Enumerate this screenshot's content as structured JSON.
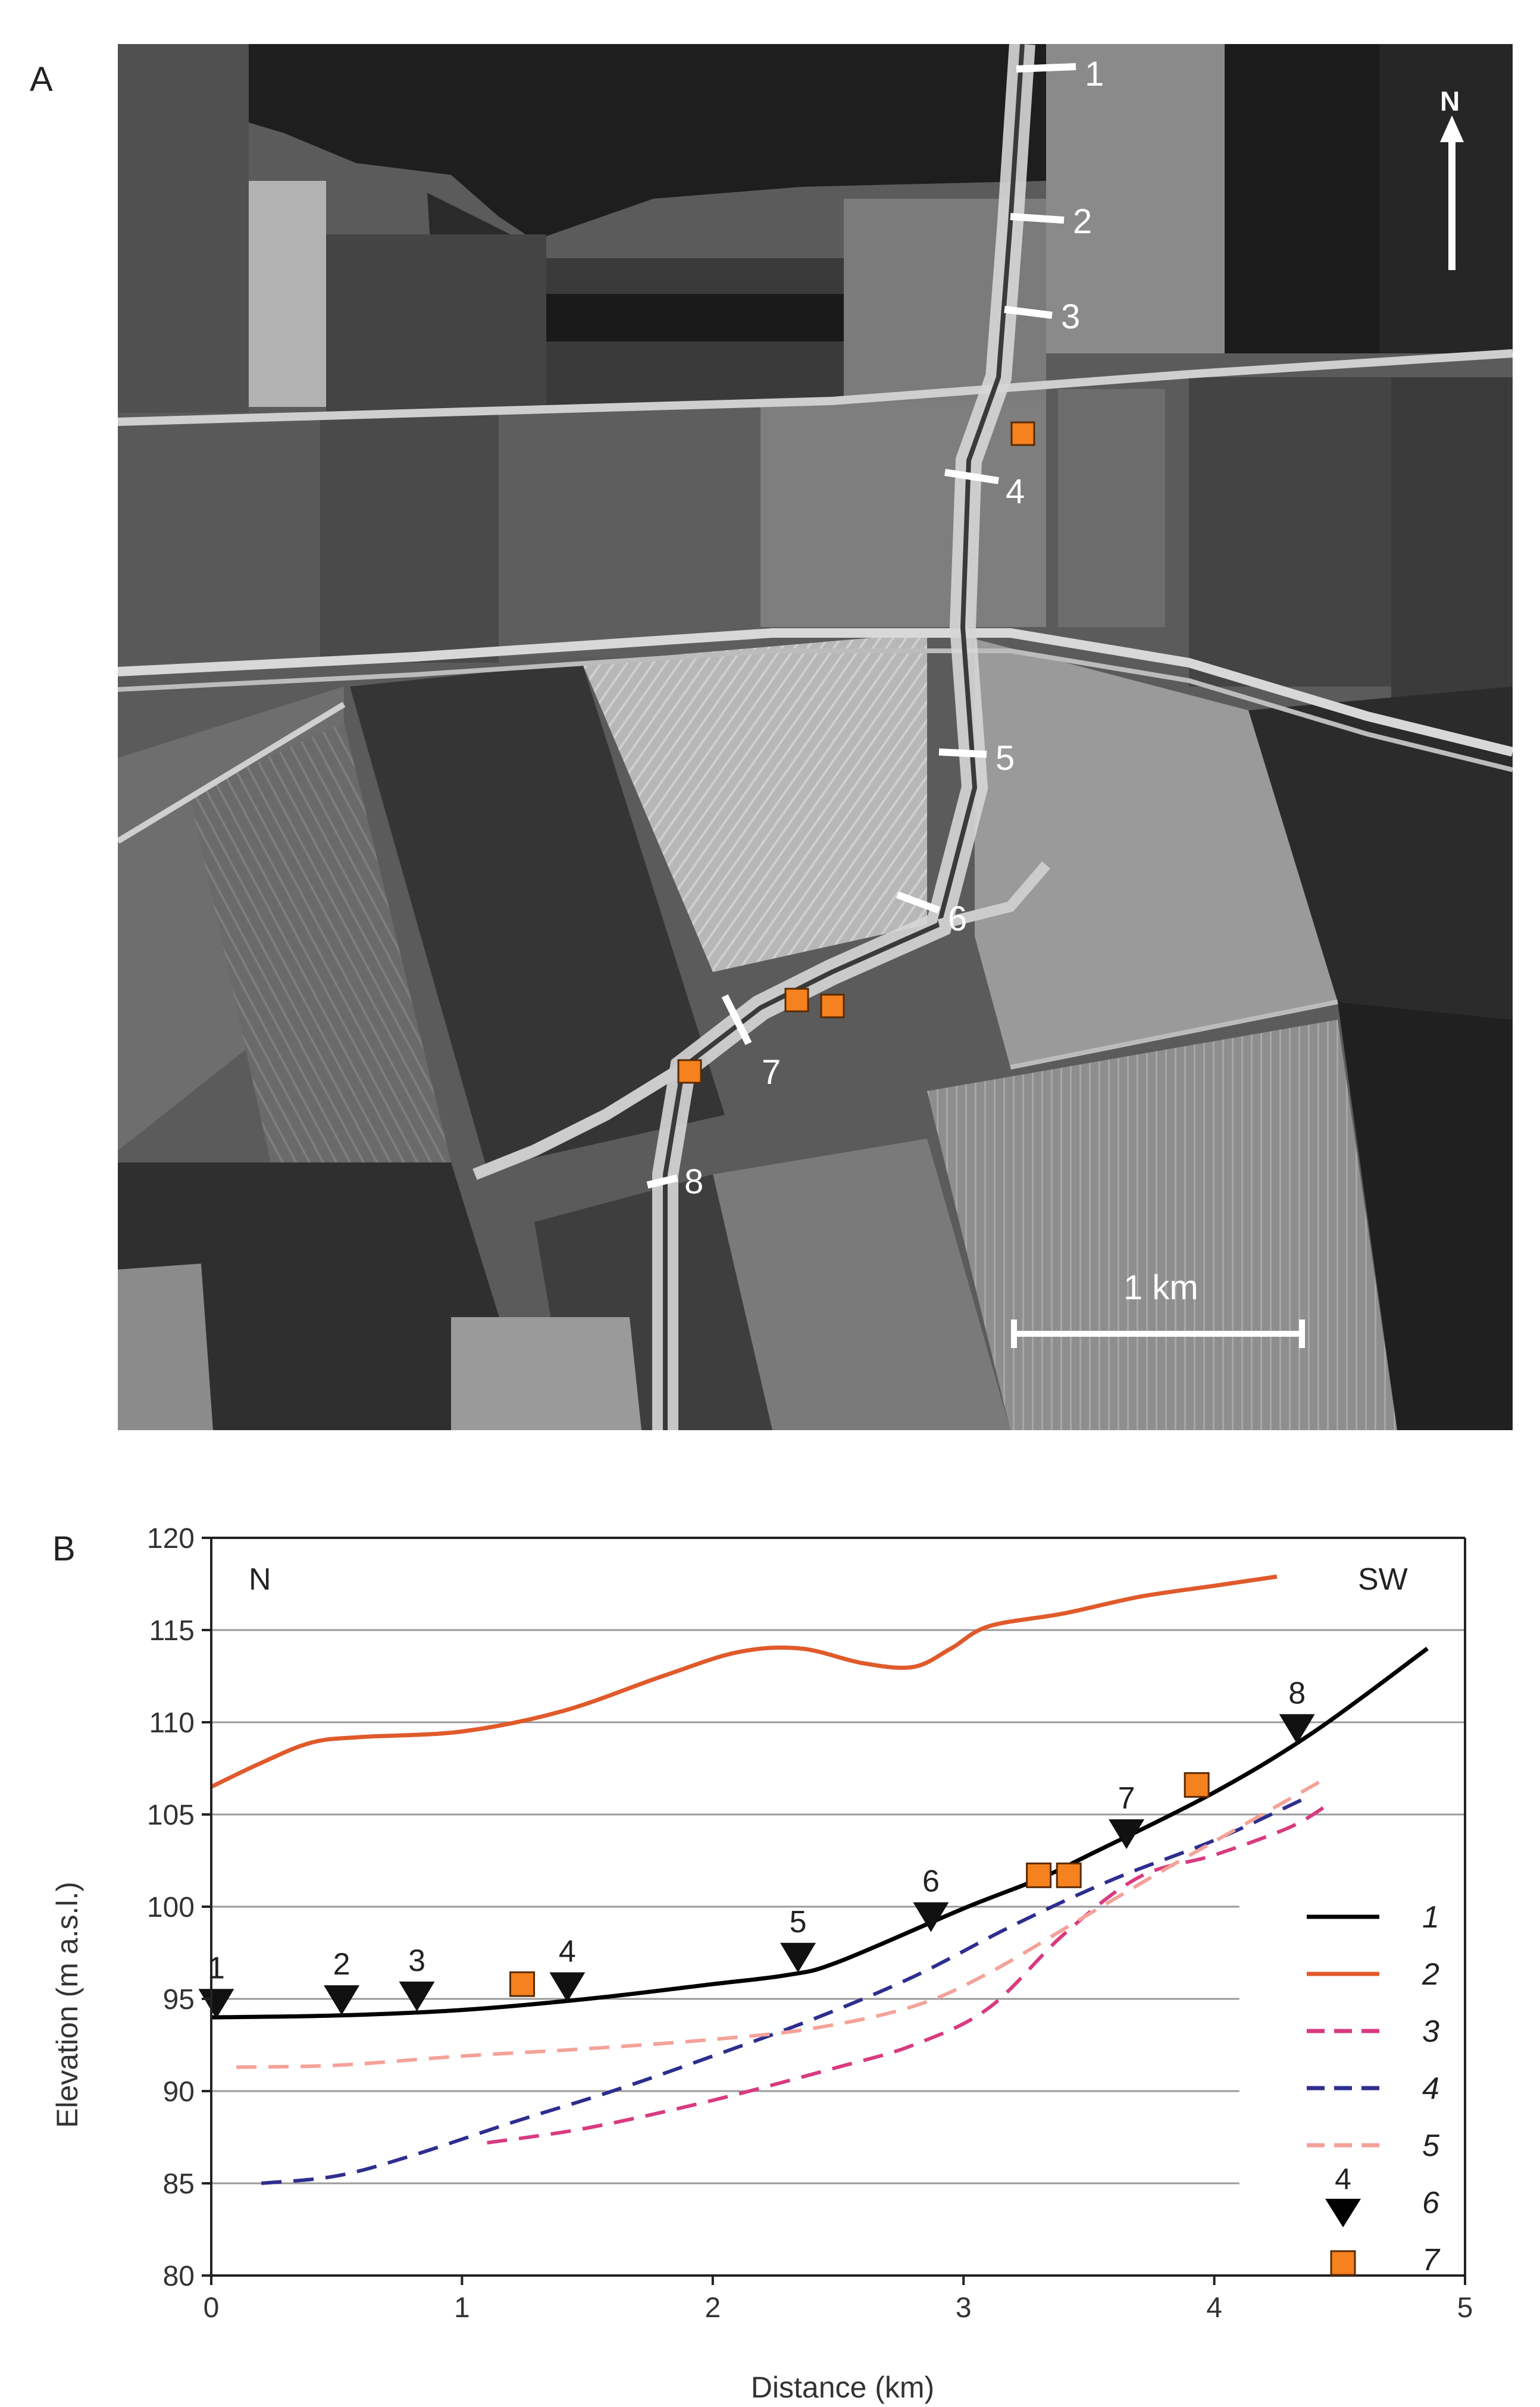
{
  "panels": {
    "a": "A",
    "b": "B"
  },
  "map": {
    "north_label": "N",
    "scale_label": "1 km",
    "transect_labels": [
      "1",
      "2",
      "3",
      "4",
      "5",
      "6",
      "7",
      "8"
    ],
    "colors": {
      "marker": "#f5811f",
      "marker_stroke": "#5a2a00",
      "line": "#ffffff"
    }
  },
  "chart_data": {
    "type": "line",
    "xlabel": "Distance (km)",
    "ylabel": "Elevation (m a.s.l.)",
    "xlim": [
      0,
      5
    ],
    "ylim": [
      80,
      120
    ],
    "xticks": [
      0,
      1,
      2,
      3,
      4,
      5
    ],
    "yticks": [
      80,
      85,
      90,
      95,
      100,
      105,
      110,
      115,
      120
    ],
    "gridlines_y": [
      85,
      90,
      95,
      100,
      105,
      110,
      115
    ],
    "corner_left": "N",
    "corner_right": "SW",
    "series": [
      {
        "name": "1",
        "style": "solid",
        "color": "#000000",
        "x": [
          0,
          0.5,
          1,
          1.5,
          2,
          2.3,
          2.5,
          3,
          3.3,
          3.5,
          4,
          4.4,
          4.85
        ],
        "y": [
          94,
          94.1,
          94.4,
          95,
          95.8,
          96.3,
          97,
          99.9,
          101.5,
          102.8,
          106.2,
          109.5,
          114
        ]
      },
      {
        "name": "2",
        "style": "solid",
        "color": "#e05a2b",
        "x": [
          0,
          0.2,
          0.4,
          0.6,
          1,
          1.4,
          1.8,
          2.1,
          2.35,
          2.6,
          2.8,
          2.95,
          3.1,
          3.4,
          3.7,
          4,
          4.25
        ],
        "y": [
          106.5,
          107.8,
          108.9,
          109.2,
          109.5,
          110.6,
          112.5,
          113.8,
          114,
          113.2,
          113,
          114,
          115.2,
          115.9,
          116.8,
          117.4,
          117.9
        ]
      },
      {
        "name": "3",
        "style": "dashed",
        "color": "#d93a7f",
        "x": [
          1.1,
          1.5,
          2,
          2.5,
          2.8,
          3.1,
          3.4,
          3.7,
          4,
          4.3,
          4.45
        ],
        "y": [
          87.2,
          88,
          89.5,
          91.3,
          92.5,
          94.5,
          98.5,
          101.6,
          102.8,
          104.3,
          105.5
        ]
      },
      {
        "name": "4",
        "style": "dashed",
        "color": "#2e2e8f",
        "x": [
          0.2,
          0.5,
          0.8,
          1.2,
          1.6,
          2,
          2.4,
          2.8,
          3.2,
          3.6,
          4,
          4.35
        ],
        "y": [
          85,
          85.4,
          86.5,
          88.3,
          90,
          91.9,
          93.9,
          96.2,
          99,
          101.5,
          103.6,
          105.8
        ]
      },
      {
        "name": "5",
        "style": "dashed",
        "color": "#f4a299",
        "x": [
          0.1,
          0.5,
          1,
          1.5,
          2,
          2.4,
          2.8,
          3.1,
          3.5,
          3.8,
          4.1,
          4.45
        ],
        "y": [
          91.3,
          91.4,
          91.9,
          92.3,
          92.8,
          93.4,
          94.6,
          96.4,
          99.6,
          102,
          104.3,
          107
        ]
      }
    ],
    "transects": [
      {
        "label": "1",
        "x": 0.02,
        "y": 94.7
      },
      {
        "label": "2",
        "x": 0.52,
        "y": 94.9
      },
      {
        "label": "3",
        "x": 0.82,
        "y": 95.1
      },
      {
        "label": "4",
        "x": 1.42,
        "y": 95.6
      },
      {
        "label": "5",
        "x": 2.34,
        "y": 97.2
      },
      {
        "label": "6",
        "x": 2.87,
        "y": 99.4
      },
      {
        "label": "7",
        "x": 3.65,
        "y": 103.9
      },
      {
        "label": "8",
        "x": 4.33,
        "y": 109.6
      }
    ],
    "sites": [
      {
        "x": 1.24,
        "y": 95.8
      },
      {
        "x": 3.3,
        "y": 101.7
      },
      {
        "x": 3.42,
        "y": 101.7
      },
      {
        "x": 3.93,
        "y": 106.6
      }
    ],
    "legend": {
      "placement": "right",
      "items": [
        {
          "label": "1",
          "kind": "line-solid",
          "color": "#000000"
        },
        {
          "label": "2",
          "kind": "line-solid",
          "color": "#e05a2b"
        },
        {
          "label": "3",
          "kind": "line-dashed",
          "color": "#d93a7f"
        },
        {
          "label": "4",
          "kind": "line-dashed",
          "color": "#2e2e8f"
        },
        {
          "label": "5",
          "kind": "line-dashed",
          "color": "#f4a299"
        },
        {
          "label": "6",
          "kind": "triangle",
          "color": "#000000",
          "marker_label": "4"
        },
        {
          "label": "7",
          "kind": "square",
          "color": "#f5811f"
        }
      ]
    }
  }
}
